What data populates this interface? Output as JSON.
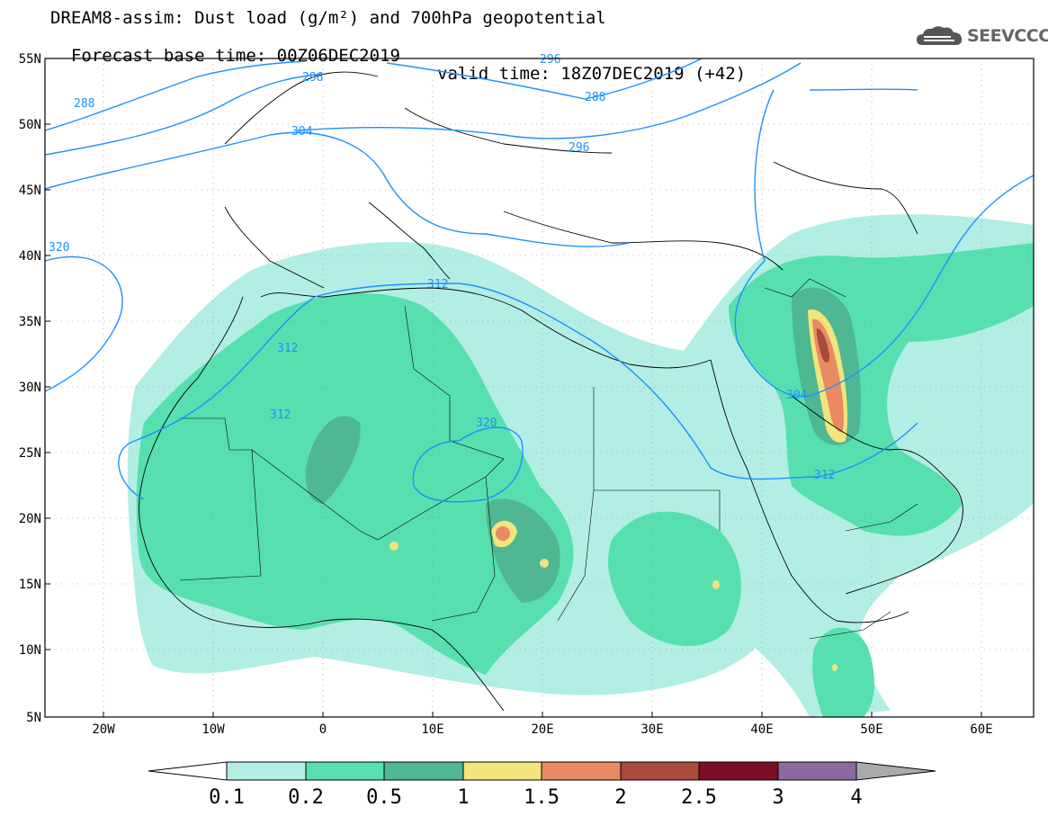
{
  "header": {
    "title_line1": "DREAM8-assim: Dust load (g/m²) and 700hPa geopotential",
    "title_line2_base": "Forecast base time: 00Z06DEC2019",
    "title_line2_valid": "valid time: 18Z07DEC2019 (+42)",
    "logo_text": "SEEVCCC"
  },
  "map": {
    "lat_ticks": [
      "55N",
      "50N",
      "45N",
      "40N",
      "35N",
      "30N",
      "25N",
      "20N",
      "15N",
      "10N",
      "5N"
    ],
    "lon_ticks": [
      "20W",
      "10W",
      "0",
      "10E",
      "20E",
      "30E",
      "40E",
      "50E",
      "60E"
    ],
    "contour_labels": [
      "288",
      "296",
      "304",
      "320",
      "312",
      "312",
      "312",
      "320",
      "288",
      "296",
      "304",
      "312",
      "296"
    ],
    "contour_color": "#1e90ff"
  },
  "colorbar": {
    "labels": [
      "0.1",
      "0.2",
      "0.5",
      "1",
      "1.5",
      "2",
      "2.5",
      "3",
      "4"
    ],
    "colors": [
      "#b2eee4",
      "#57dfb0",
      "#4fb893",
      "#f2e57c",
      "#e98a62",
      "#a94a3c",
      "#7a0f27",
      "#8a6aa0",
      "#aaaaaa"
    ]
  }
}
